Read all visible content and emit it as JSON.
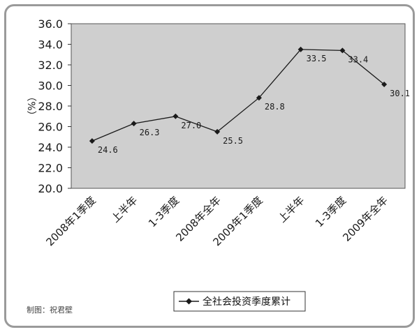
{
  "credit": "制图：祝君壁",
  "chart_data": {
    "type": "line",
    "categories": [
      "2008年1季度",
      "上半年",
      "1-3季度",
      "2008年全年",
      "2009年1季度",
      "上半年",
      "1-3季度",
      "2009年全年"
    ],
    "series": [
      {
        "name": "全社会投资季度累计",
        "values": [
          24.6,
          26.3,
          27.0,
          25.5,
          28.8,
          33.5,
          33.4,
          30.1
        ]
      }
    ],
    "data_labels": [
      "24.6",
      "26.3",
      "27.0",
      "25.5",
      "28.8",
      "33.5",
      "33.4",
      "30.1"
    ],
    "ylabel": "（%）",
    "ylim": [
      20.0,
      36.0
    ],
    "yticks": [
      "20.0",
      "22.0",
      "24.0",
      "26.0",
      "28.0",
      "30.0",
      "32.0",
      "34.0",
      "36.0"
    ],
    "grid": false,
    "legend_position": "bottom",
    "colors": {
      "plot_background": "#cfcfcf",
      "line": "#1a1a1a",
      "frame": "#9a9a9a"
    }
  }
}
